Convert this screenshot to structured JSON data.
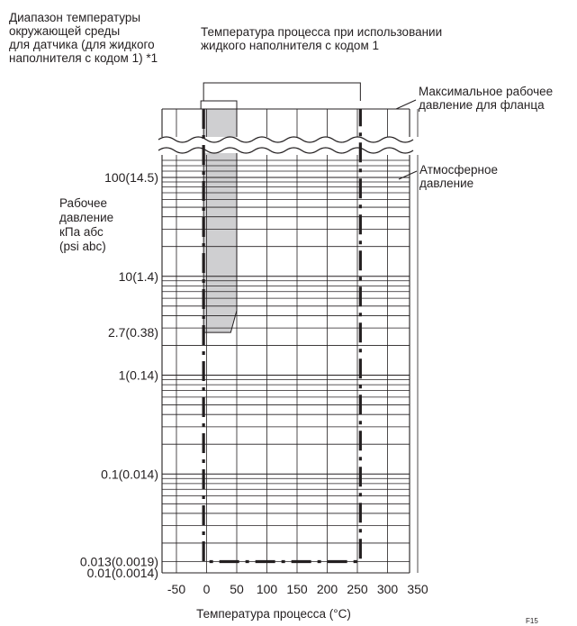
{
  "chart_data": {
    "type": "line",
    "x_axis": {
      "label": "Температура процесса (°C)",
      "ticks": [
        -50,
        0,
        50,
        100,
        150,
        200,
        250,
        300,
        350
      ],
      "tick_labels": [
        "-50",
        "0",
        "50",
        "100",
        "150",
        "200",
        "250",
        "300",
        "350"
      ],
      "range": [
        -50,
        350
      ]
    },
    "y_axis": {
      "label": [
        "Рабочее",
        "давление",
        "кПа абс",
        "(psi abc)"
      ],
      "scale": "log",
      "tick_values": [
        100,
        10,
        2.7,
        1,
        0.1,
        0.013,
        0.01
      ],
      "tick_labels": [
        "100(14.5)",
        "10(1.4)",
        "2.7(0.38)",
        "1(0.14)",
        "0.1(0.014)",
        "0.013(0.0019)",
        "0.01(0.0014)"
      ],
      "range": [
        0.01,
        100
      ],
      "axis_break": true
    },
    "series": [
      {
        "style": "dash-dot",
        "x": [
          -5,
          -5,
          255,
          255
        ],
        "y": [
          100,
          0.013,
          0.013,
          100
        ]
      }
    ],
    "shaded_region": {
      "x": [
        -5,
        50,
        50,
        40,
        -5
      ],
      "y": [
        100,
        100,
        4.5,
        2.7,
        2.7
      ]
    },
    "annotations": [
      {
        "text": [
          "Диапазон температуры",
          "окружающей среды",
          "для датчика (для жидкого",
          "наполнителя с кодом 1) *1"
        ]
      },
      {
        "text": [
          "Температура процесса при использовании",
          "жидкого наполнителя с кодом 1"
        ]
      },
      {
        "text": [
          "Максимальное рабочее",
          "давление для фланца"
        ]
      },
      {
        "text": [
          "Атмосферное",
          "давление"
        ]
      }
    ],
    "footnote": "F15"
  }
}
